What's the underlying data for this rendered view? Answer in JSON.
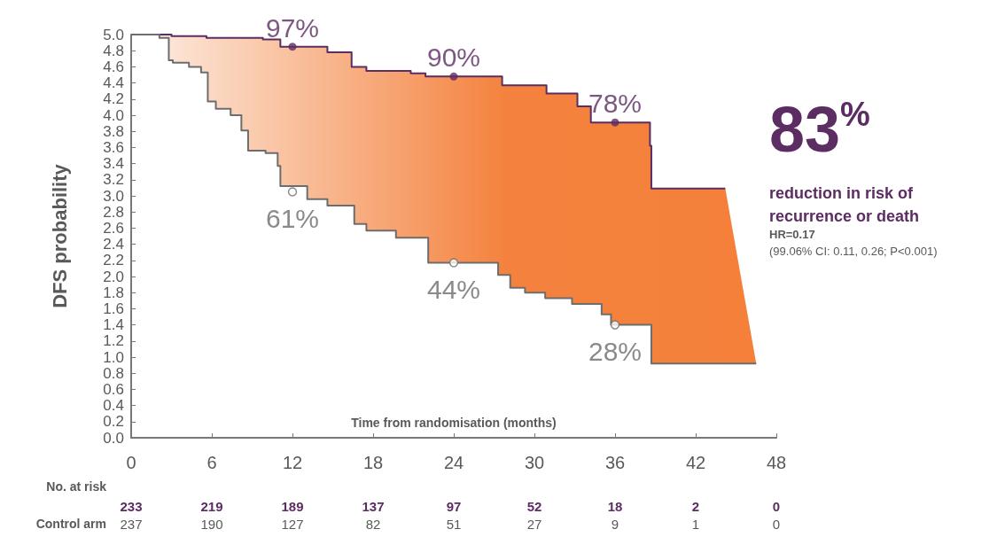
{
  "chart_data": {
    "type": "step",
    "xlabel": "Time from randomisation (months)",
    "ylabel": "DFS probability",
    "xlim": [
      0,
      48
    ],
    "xticks": [
      0,
      6,
      12,
      18,
      24,
      30,
      36,
      42,
      48
    ],
    "ylim": [
      0,
      5
    ],
    "yticks": [
      {
        "value": 0,
        "label": "0.0"
      },
      0.2,
      0.4,
      0.6,
      0.8,
      {
        "value": 1,
        "label": "1.0"
      },
      1.2,
      1.4,
      1.6,
      1.8,
      {
        "value": 2,
        "label": "2.0"
      },
      2.2,
      2.4,
      2.6,
      2.8,
      {
        "value": 3,
        "label": "3.0"
      },
      3.2,
      3.4,
      3.6,
      3.8,
      {
        "value": 4,
        "label": "4.0"
      },
      4.2,
      4.4,
      4.6,
      4.8,
      {
        "value": 5,
        "label": "5.0"
      }
    ],
    "grid": false,
    "line_style": "solid",
    "marker": "none",
    "series": [
      {
        "color": "#5c2d62",
        "x": [
          0,
          2.1,
          2.8,
          3.0,
          3.1,
          4.3,
          5.2,
          5.6,
          5.7,
          6.3,
          7.4,
          8.2,
          8.7,
          9.8,
          10.0,
          10.9,
          11.1,
          13.1,
          14.6,
          16.4,
          16.6,
          17.5,
          19.7,
          20.8,
          21.9,
          22.1,
          27.3,
          27.6,
          28.2,
          29.3,
          30.8,
          30.9,
          32.8,
          33.2,
          34.2,
          35.0,
          35.7,
          38.6,
          38.7,
          44.2,
          46.5
        ],
        "values": [
          5.0,
          5.0,
          5.0,
          4.98,
          4.98,
          4.98,
          4.98,
          4.96,
          4.96,
          4.96,
          4.96,
          4.96,
          4.96,
          4.94,
          4.94,
          4.94,
          4.85,
          4.85,
          4.78,
          4.6,
          4.6,
          4.55,
          4.55,
          4.52,
          4.48,
          4.48,
          4.48,
          4.37,
          4.37,
          4.37,
          4.37,
          4.27,
          4.27,
          4.11,
          3.91,
          3.91,
          3.91,
          3.62,
          3.09,
          3.09,
          null
        ],
        "upper": [
          5.0,
          5.0,
          5.0,
          4.98,
          4.98,
          4.98,
          4.98,
          4.96,
          4.96,
          4.96,
          4.96,
          4.96,
          4.96,
          4.94,
          4.94,
          4.94,
          4.85,
          4.85,
          4.78,
          4.6,
          4.6,
          4.55,
          4.55,
          4.52,
          4.48,
          4.48,
          4.48,
          4.37,
          4.37,
          4.37,
          4.37,
          4.27,
          4.27,
          4.11,
          3.91,
          3.91,
          3.91,
          3.62,
          3.09,
          3.09,
          0.92
        ],
        "lower": [
          5.0,
          4.96,
          4.68,
          4.68,
          4.65,
          4.6,
          4.53,
          4.53,
          4.17,
          4.08,
          4.0,
          3.81,
          3.56,
          3.56,
          3.53,
          3.37,
          3.12,
          2.96,
          2.88,
          2.88,
          2.65,
          2.57,
          2.48,
          2.48,
          2.48,
          2.17,
          2.02,
          2.02,
          1.86,
          1.8,
          1.73,
          1.73,
          1.66,
          1.66,
          1.66,
          1.53,
          1.4,
          1.4,
          0.92,
          0.92,
          0.92
        ]
      },
      {
        "color": "#6d6d6d",
        "x": [
          0,
          2.1,
          2.8,
          3.1,
          4.3,
          5.2,
          5.7,
          6.3,
          7.4,
          8.2,
          8.7,
          10.0,
          10.9,
          11.1,
          13.1,
          14.6,
          16.6,
          17.5,
          19.7,
          22.1,
          27.3,
          28.2,
          29.3,
          30.8,
          32.8,
          35.0,
          35.7,
          38.7,
          46.5
        ],
        "values": [
          5.0,
          4.96,
          4.68,
          4.65,
          4.6,
          4.53,
          4.17,
          4.08,
          4.0,
          3.81,
          3.56,
          3.53,
          3.37,
          3.12,
          2.96,
          2.88,
          2.65,
          2.57,
          2.48,
          2.17,
          2.02,
          1.86,
          1.8,
          1.73,
          1.66,
          1.53,
          1.4,
          0.92,
          0.92
        ]
      }
    ],
    "annotations": [
      "83$^{%}$",
      "reduction in risk of recurrence or death",
      "HR=0.17",
      "(99.06% CI: 0.11, 0.26; P<0.001)",
      "No. at risk",
      "233 219 189 137 97 52 18 2 0",
      "Control arm",
      "237 190 127 82 51 27 9 1 0",
      {
        "text": "97%",
        "x": 12,
        "y": 4.85
      },
      {
        "text": "90%",
        "x": 24,
        "y": 4.48
      },
      {
        "text": "78%",
        "x": 36,
        "y": 3.91
      },
      {
        "text": "61%",
        "x": 12,
        "y": 3.05
      },
      {
        "text": "44%",
        "x": 24,
        "y": 2.17
      },
      {
        "text": "28%",
        "x": 36,
        "y": 1.4
      }
    ]
  }
}
